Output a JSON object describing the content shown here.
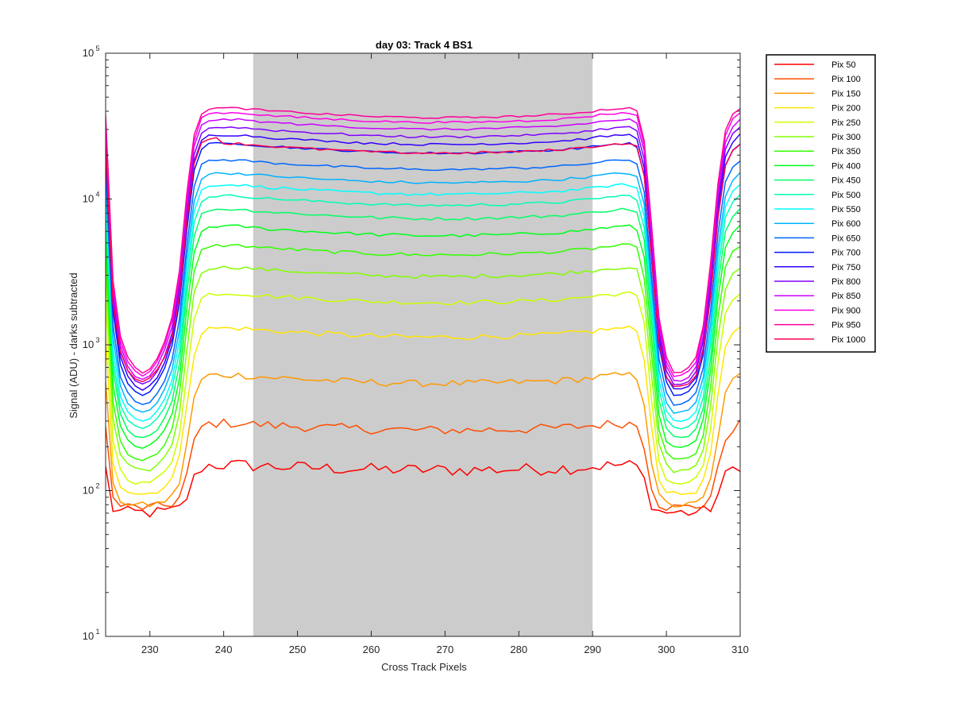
{
  "chart_data": {
    "type": "line",
    "title": "day 03: Track 4  BS1",
    "xlabel": "Cross Track Pixels",
    "ylabel": "Signal (ADU) - darks subtracted",
    "xlim": [
      224,
      310
    ],
    "ylim": [
      10,
      100000
    ],
    "yscale": "log",
    "xticks": [
      230,
      240,
      250,
      260,
      270,
      280,
      290,
      300,
      310
    ],
    "yticks": [
      {
        "value": 10,
        "base": "10",
        "exp": "1"
      },
      {
        "value": 100,
        "base": "10",
        "exp": "2"
      },
      {
        "value": 1000,
        "base": "10",
        "exp": "3"
      },
      {
        "value": 10000,
        "base": "10",
        "exp": "4"
      },
      {
        "value": 100000,
        "base": "10",
        "exp": "5"
      }
    ],
    "shaded_region": {
      "x_start": 244,
      "x_end": 290,
      "color": "#cccccc"
    },
    "legend_position": "outside-right",
    "profile_shape": {
      "x": [
        224,
        225,
        226,
        227,
        228,
        229,
        230,
        231,
        232,
        233,
        234,
        235,
        236,
        237,
        238,
        239,
        240,
        241,
        242,
        243,
        244,
        245,
        246,
        247,
        248,
        249,
        250,
        251,
        252,
        253,
        254,
        255,
        256,
        257,
        258,
        259,
        260,
        261,
        262,
        263,
        264,
        265,
        266,
        267,
        268,
        269,
        270,
        271,
        272,
        273,
        274,
        275,
        276,
        277,
        278,
        279,
        280,
        281,
        282,
        283,
        284,
        285,
        286,
        287,
        288,
        289,
        290,
        291,
        292,
        293,
        294,
        295,
        296,
        297,
        298,
        299,
        300,
        301,
        302,
        303,
        304,
        305,
        306,
        307,
        308,
        309,
        310
      ],
      "relative": [
        0.9,
        0.06,
        0.02,
        0.012,
        0.009,
        0.008,
        0.009,
        0.012,
        0.018,
        0.03,
        0.07,
        0.25,
        0.65,
        0.92,
        0.99,
        1.0,
        1.0,
        1.0,
        1.0,
        0.99,
        0.98,
        0.97,
        0.96,
        0.95,
        0.95,
        0.94,
        0.93,
        0.93,
        0.92,
        0.91,
        0.91,
        0.9,
        0.9,
        0.89,
        0.89,
        0.88,
        0.88,
        0.87,
        0.87,
        0.87,
        0.87,
        0.86,
        0.86,
        0.86,
        0.86,
        0.86,
        0.86,
        0.86,
        0.86,
        0.86,
        0.86,
        0.87,
        0.87,
        0.87,
        0.87,
        0.88,
        0.88,
        0.88,
        0.89,
        0.89,
        0.9,
        0.9,
        0.91,
        0.92,
        0.93,
        0.94,
        0.95,
        0.97,
        0.98,
        0.99,
        1.0,
        1.0,
        0.95,
        0.6,
        0.15,
        0.03,
        0.012,
        0.008,
        0.008,
        0.009,
        0.012,
        0.025,
        0.08,
        0.3,
        0.7,
        0.9,
        1.0
      ]
    },
    "series": [
      {
        "name": "Pix 50",
        "color": "#ff0000",
        "plateau": 150,
        "valley": 70
      },
      {
        "name": "Pix 100",
        "color": "#ff4d00",
        "plateau": 290,
        "valley": 75
      },
      {
        "name": "Pix 150",
        "color": "#ff9900",
        "plateau": 620,
        "valley": 75
      },
      {
        "name": "Pix 200",
        "color": "#ffe600",
        "plateau": 1300,
        "valley": 85
      },
      {
        "name": "Pix 250",
        "color": "#ccff00",
        "plateau": 2250,
        "valley": 95
      },
      {
        "name": "Pix 300",
        "color": "#80ff00",
        "plateau": 3400,
        "valley": 110
      },
      {
        "name": "Pix 350",
        "color": "#33ff00",
        "plateau": 4800,
        "valley": 125
      },
      {
        "name": "Pix 400",
        "color": "#00ff1a",
        "plateau": 6500,
        "valley": 145
      },
      {
        "name": "Pix 450",
        "color": "#00ff66",
        "plateau": 8500,
        "valley": 165
      },
      {
        "name": "Pix 500",
        "color": "#00ffb3",
        "plateau": 10500,
        "valley": 185
      },
      {
        "name": "Pix 550",
        "color": "#00ffff",
        "plateau": 12500,
        "valley": 205
      },
      {
        "name": "Pix 600",
        "color": "#00b3ff",
        "plateau": 15000,
        "valley": 225
      },
      {
        "name": "Pix 650",
        "color": "#0066ff",
        "plateau": 18500,
        "valley": 245
      },
      {
        "name": "Pix 700",
        "color": "#001aff",
        "plateau": 24000,
        "valley": 265
      },
      {
        "name": "Pix 750",
        "color": "#3300ff",
        "plateau": 27500,
        "valley": 275
      },
      {
        "name": "Pix 800",
        "color": "#8000ff",
        "plateau": 31000,
        "valley": 285
      },
      {
        "name": "Pix 850",
        "color": "#cc00ff",
        "plateau": 35000,
        "valley": 295
      },
      {
        "name": "Pix 900",
        "color": "#ff00e6",
        "plateau": 39000,
        "valley": 305
      },
      {
        "name": "Pix 950",
        "color": "#ff0099",
        "plateau": 42000,
        "valley": 315
      },
      {
        "name": "Pix 1000",
        "color": "#ff004d",
        "plateau": 24000,
        "valley": 325
      }
    ]
  }
}
